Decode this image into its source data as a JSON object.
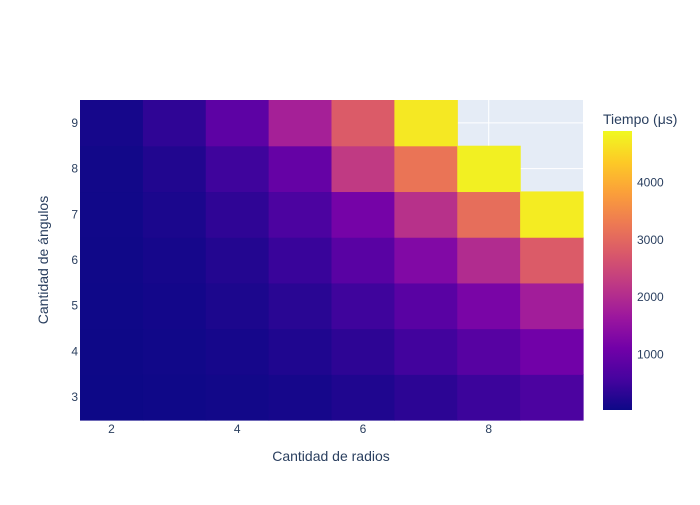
{
  "chart_data": {
    "type": "heatmap",
    "xlabel": "Cantidad de radios",
    "ylabel": "Cantidad de ángulos",
    "x": [
      2,
      3,
      4,
      5,
      6,
      7,
      8,
      9
    ],
    "y": [
      3,
      4,
      5,
      6,
      7,
      8,
      9
    ],
    "x_ticks": [
      "2",
      "4",
      "6",
      "8"
    ],
    "y_ticks": [
      "3",
      "4",
      "5",
      "6",
      "7",
      "8",
      "9"
    ],
    "z": [
      [
        30,
        50,
        80,
        120,
        200,
        320,
        480,
        650
      ],
      [
        40,
        70,
        120,
        200,
        330,
        530,
        780,
        1100
      ],
      [
        50,
        90,
        170,
        300,
        500,
        800,
        1200,
        1750
      ],
      [
        60,
        120,
        240,
        450,
        800,
        1300,
        2000,
        2800
      ],
      [
        70,
        160,
        350,
        650,
        1150,
        2100,
        3100,
        4750
      ],
      [
        80,
        220,
        500,
        950,
        2250,
        3200,
        4800,
        null
      ],
      [
        120,
        350,
        850,
        1800,
        2800,
        4700,
        null,
        null
      ]
    ],
    "colorscale": [
      "#0d0887",
      "#46039f",
      "#7201a8",
      "#9c179e",
      "#bd3786",
      "#d8576b",
      "#ed7953",
      "#fb9f3a",
      "#fdca26",
      "#f0f921"
    ],
    "zmin": 30,
    "zmax": 4900,
    "colorbar": {
      "title": "Tiempo (μs)",
      "ticks": [
        1000,
        2000,
        3000,
        4000
      ],
      "tick_labels": [
        "1000",
        "2000",
        "3000",
        "4000"
      ]
    },
    "plot_background": "#e5ecf6",
    "grid": true
  }
}
